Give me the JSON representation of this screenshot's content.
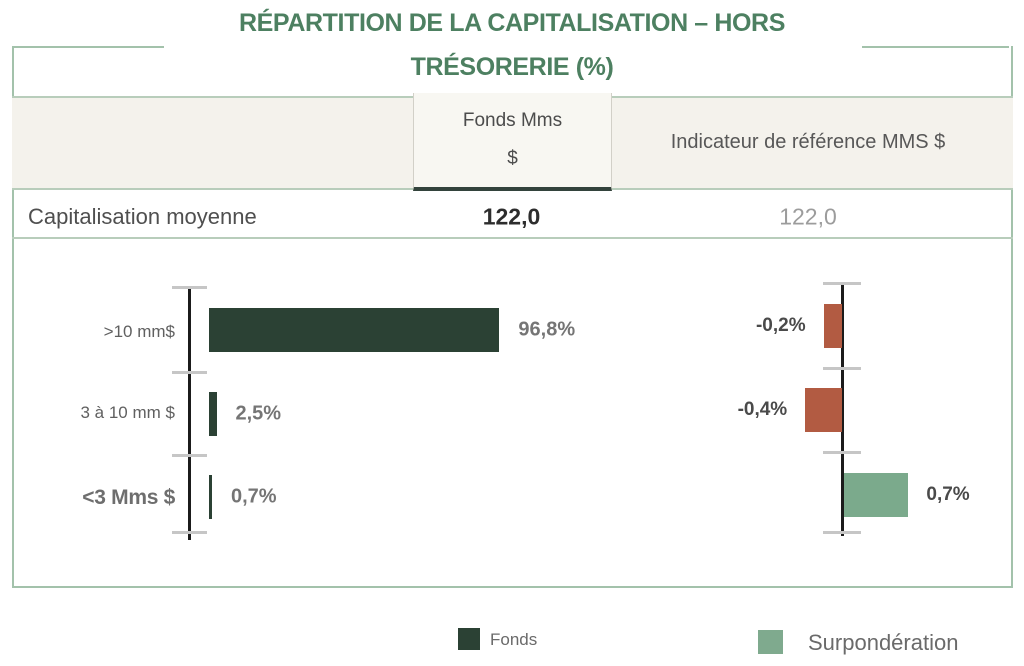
{
  "title": {
    "line1": "RÉPARTITION DE LA CAPITALISATION – HORS",
    "line2": "TRÉSORERIE (%)"
  },
  "table": {
    "fund_header_line1": "Fonds Mms",
    "fund_header_line2": "$",
    "benchmark_header": "Indicateur de référence MMS $",
    "rows": [
      {
        "label": "Capitalisation moyenne",
        "fund": "122,0",
        "benchmark": "122,0"
      }
    ]
  },
  "chart_data": {
    "type": "bar",
    "orientation": "horizontal",
    "title": "Répartition de la capitalisation – hors trésorerie (%)",
    "categories": [
      ">10 mm$",
      "3 à 10 mm $",
      "<3 Mms $"
    ],
    "series": [
      {
        "name": "Fonds",
        "values": [
          96.8,
          2.5,
          0.7
        ],
        "labels": [
          "96,8%",
          "2,5%",
          "0,7%"
        ],
        "color": "#2b4134"
      },
      {
        "name": "Surpondération",
        "values": [
          -0.2,
          -0.4,
          0.7
        ],
        "labels": [
          "-0,2%",
          "-0,4%",
          "0,7%"
        ],
        "positive_color": "#7baa8c",
        "negative_color": "#b25b42"
      }
    ],
    "legend_position": "bottom",
    "grid": false,
    "axis_color": "#1b1b1b",
    "tick_color": "#c6c6c6"
  },
  "legend": {
    "items": [
      {
        "label": "Fonds",
        "color": "#2b4134"
      },
      {
        "label": "Surpondération",
        "color": "#7faa8e"
      }
    ]
  },
  "colors": {
    "title_green": "#4d8061",
    "frame_green": "#a3c2ab",
    "band_bg": "#f4f2ec",
    "fund_dark_green": "#2b4134",
    "underweight_red": "#b25b42",
    "overweight_green": "#7baa8c"
  }
}
